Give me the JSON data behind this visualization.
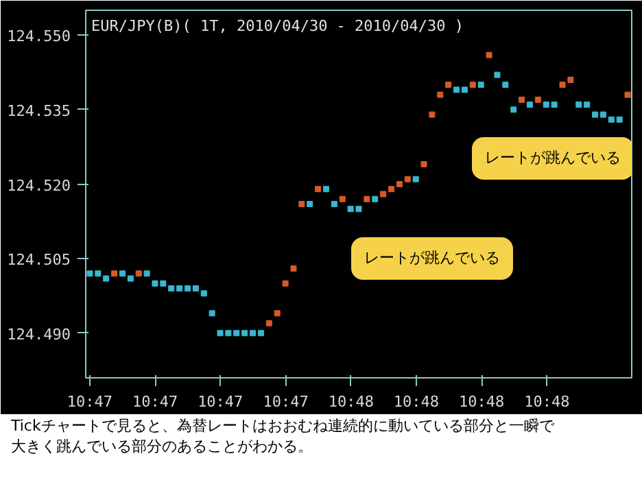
{
  "chart_data": {
    "type": "scatter",
    "title": "EUR/JPY(B)( 1T, 2010/04/30 - 2010/04/30 )",
    "x": [
      10.77639,
      10.77691,
      10.77743,
      10.77795,
      10.77847,
      10.77899,
      10.77951,
      10.78003,
      10.78055,
      10.78107,
      10.78159,
      10.78211,
      10.78263,
      10.78315,
      10.78367,
      10.78419,
      10.78471,
      10.78523,
      10.78575,
      10.78627,
      10.78679,
      10.78731,
      10.78783,
      10.78835,
      10.78887,
      10.78939,
      10.78991,
      10.79043,
      10.79095,
      10.79147,
      10.79199,
      10.79251,
      10.79303,
      10.79355,
      10.79407,
      10.79459,
      10.79511,
      10.79563,
      10.79615,
      10.79667,
      10.79719,
      10.79771,
      10.79823,
      10.79875,
      10.79927,
      10.79979,
      10.80031,
      10.80083,
      10.80135,
      10.80187,
      10.80239,
      10.80291,
      10.80343,
      10.80395,
      10.80447,
      10.80499,
      10.80551,
      10.80603,
      10.80655,
      10.80707,
      10.80759,
      10.80811,
      10.80863,
      10.80915,
      10.80967,
      10.81019,
      10.81071
    ],
    "xlim": [
      10.77613,
      10.81097
    ],
    "xticks": [
      {
        "value": 10.77639,
        "label": "10:47"
      },
      {
        "value": 10.78056,
        "label": "10:47"
      },
      {
        "value": 10.78472,
        "label": "10:47"
      },
      {
        "value": 10.78889,
        "label": "10:47"
      },
      {
        "value": 10.79306,
        "label": "10:48"
      },
      {
        "value": 10.79722,
        "label": "10:48"
      },
      {
        "value": 10.80139,
        "label": "10:48"
      },
      {
        "value": 10.80556,
        "label": "10:48"
      }
    ],
    "series": [
      {
        "color": "#d85a28",
        "values": [
          null,
          null,
          null,
          124.502,
          null,
          null,
          124.502,
          null,
          null,
          null,
          null,
          null,
          null,
          null,
          null,
          null,
          null,
          null,
          null,
          null,
          null,
          null,
          124.492,
          124.494,
          124.5,
          124.503,
          124.516,
          null,
          124.519,
          null,
          null,
          124.517,
          null,
          null,
          124.517,
          null,
          124.518,
          124.519,
          124.52,
          124.521,
          null,
          124.524,
          124.534,
          124.538,
          124.54,
          null,
          null,
          124.54,
          null,
          124.546,
          null,
          null,
          null,
          124.537,
          null,
          124.537,
          null,
          null,
          124.54,
          124.541,
          null,
          null,
          null,
          null,
          null,
          null,
          124.538
        ]
      },
      {
        "color": "#38b8d0",
        "values": [
          124.502,
          124.502,
          124.501,
          null,
          124.502,
          124.501,
          null,
          124.502,
          124.5,
          124.5,
          124.499,
          124.499,
          124.499,
          124.499,
          124.498,
          124.494,
          124.49,
          124.49,
          124.49,
          124.49,
          124.49,
          124.49,
          null,
          null,
          null,
          null,
          null,
          124.516,
          null,
          124.519,
          124.516,
          null,
          124.515,
          124.515,
          null,
          124.517,
          null,
          null,
          null,
          null,
          124.521,
          null,
          null,
          null,
          null,
          124.539,
          124.539,
          null,
          124.54,
          null,
          124.542,
          124.54,
          124.535,
          null,
          124.536,
          null,
          124.536,
          124.536,
          null,
          null,
          124.536,
          124.536,
          124.534,
          124.534,
          124.533,
          124.533,
          null
        ]
      }
    ],
    "ylim": [
      124.481,
      124.555
    ],
    "yticks": [
      {
        "value": 124.49,
        "label": "124.490"
      },
      {
        "value": 124.505,
        "label": "124.505"
      },
      {
        "value": 124.52,
        "label": "124.520"
      },
      {
        "value": 124.535,
        "label": "124.535"
      },
      {
        "value": 124.55,
        "label": "124.550"
      }
    ],
    "grid": false,
    "marker": "square",
    "annotations": [
      "レートが跳んでいる",
      "レートが跳んでいる",
      "Tickチャートで見ると、為替レートはおおむね連続的に動いている部分と一瞬で大きく跳んでいる部分のあることがわかる。"
    ]
  }
}
